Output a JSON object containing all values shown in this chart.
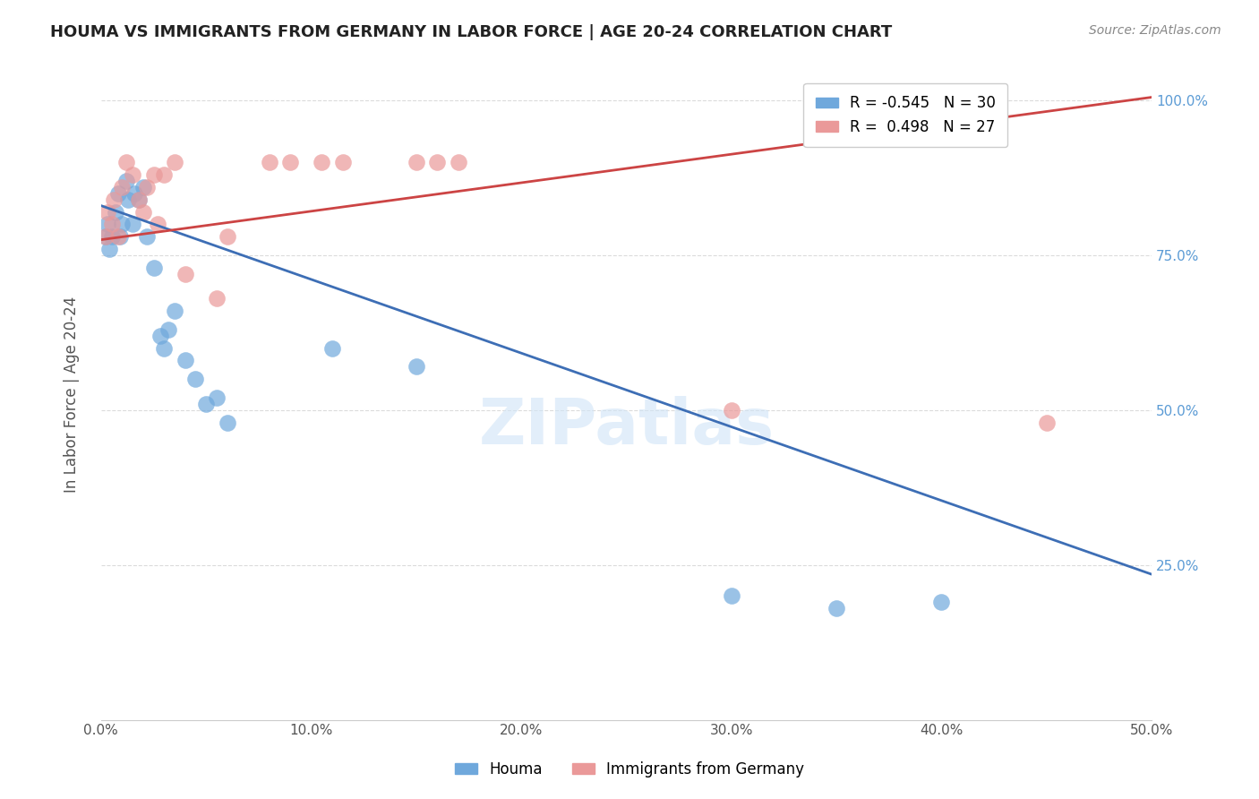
{
  "title": "HOUMA VS IMMIGRANTS FROM GERMANY IN LABOR FORCE | AGE 20-24 CORRELATION CHART",
  "source": "Source: ZipAtlas.com",
  "ylabel": "In Labor Force | Age 20-24",
  "xlim": [
    0.0,
    0.5
  ],
  "ylim": [
    0.0,
    1.05
  ],
  "xtick_labels": [
    "0.0%",
    "10.0%",
    "20.0%",
    "30.0%",
    "40.0%",
    "50.0%"
  ],
  "xtick_vals": [
    0.0,
    0.1,
    0.2,
    0.3,
    0.4,
    0.5
  ],
  "ytick_labels": [
    "25.0%",
    "50.0%",
    "75.0%",
    "100.0%"
  ],
  "ytick_vals": [
    0.25,
    0.5,
    0.75,
    1.0
  ],
  "houma_R": "-0.545",
  "houma_N": "30",
  "germany_R": "0.498",
  "germany_N": "27",
  "houma_color": "#6fa8dc",
  "germany_color": "#ea9999",
  "houma_line_color": "#3d6eb5",
  "germany_line_color": "#cc4444",
  "houma_x": [
    0.002,
    0.003,
    0.004,
    0.005,
    0.007,
    0.008,
    0.009,
    0.01,
    0.012,
    0.013,
    0.015,
    0.016,
    0.018,
    0.02,
    0.022,
    0.025,
    0.028,
    0.03,
    0.032,
    0.035,
    0.04,
    0.045,
    0.05,
    0.055,
    0.06,
    0.11,
    0.15,
    0.3,
    0.35,
    0.4
  ],
  "houma_y": [
    0.78,
    0.8,
    0.76,
    0.78,
    0.82,
    0.85,
    0.78,
    0.8,
    0.87,
    0.84,
    0.8,
    0.85,
    0.84,
    0.86,
    0.78,
    0.73,
    0.62,
    0.6,
    0.63,
    0.66,
    0.58,
    0.55,
    0.51,
    0.52,
    0.48,
    0.6,
    0.57,
    0.2,
    0.18,
    0.19
  ],
  "germany_x": [
    0.002,
    0.003,
    0.005,
    0.006,
    0.008,
    0.01,
    0.012,
    0.015,
    0.018,
    0.02,
    0.022,
    0.025,
    0.027,
    0.03,
    0.035,
    0.04,
    0.055,
    0.06,
    0.08,
    0.09,
    0.105,
    0.115,
    0.15,
    0.16,
    0.17,
    0.3,
    0.45
  ],
  "germany_y": [
    0.78,
    0.82,
    0.8,
    0.84,
    0.78,
    0.86,
    0.9,
    0.88,
    0.84,
    0.82,
    0.86,
    0.88,
    0.8,
    0.88,
    0.9,
    0.72,
    0.68,
    0.78,
    0.9,
    0.9,
    0.9,
    0.9,
    0.9,
    0.9,
    0.9,
    0.5,
    0.48
  ],
  "houma_trendline_x": [
    0.0,
    0.5
  ],
  "houma_trendline_y": [
    0.83,
    0.235
  ],
  "germany_trendline_x": [
    0.0,
    0.5
  ],
  "germany_trendline_y": [
    0.775,
    1.005
  ],
  "watermark": "ZIPatlas",
  "background_color": "#ffffff"
}
